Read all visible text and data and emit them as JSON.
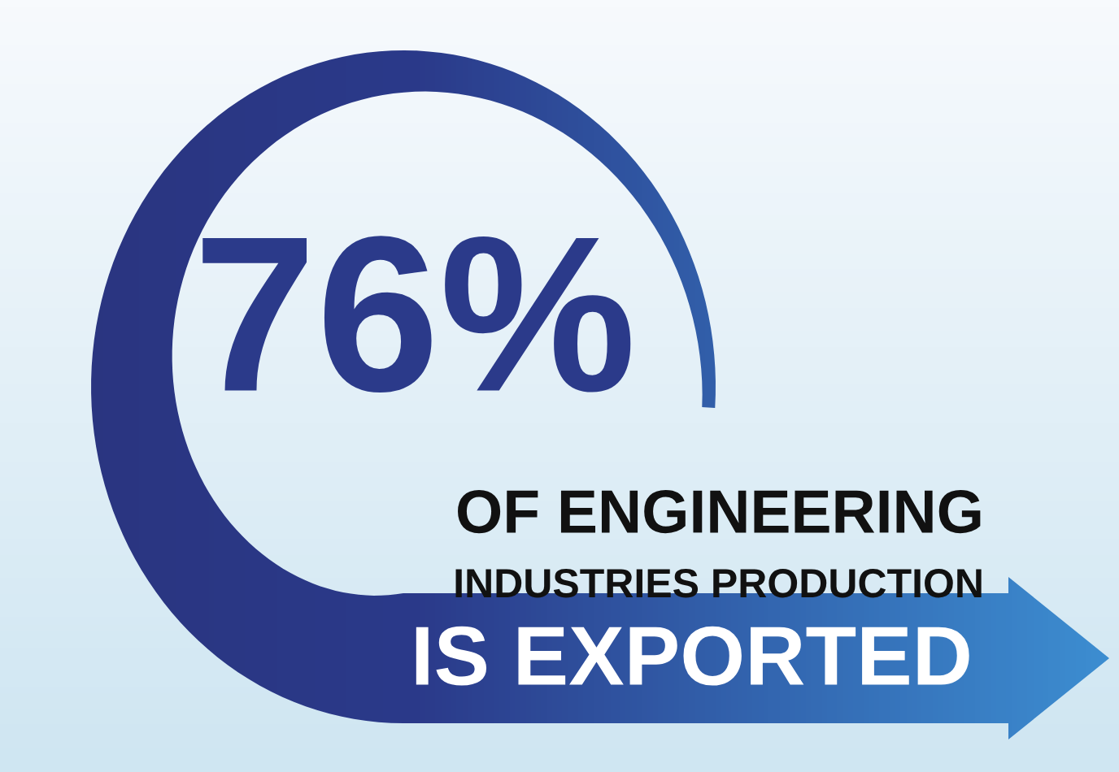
{
  "chart_data": {
    "type": "other",
    "categories": [
      null
    ],
    "values": [
      76
    ],
    "value_labels": [
      "76%"
    ],
    "colors": [
      "#2b3a8a"
    ],
    "annotations": [
      "OF ENGINEERING",
      "INDUSTRIES PRODUCTION",
      "IS EXPORTED"
    ]
  }
}
